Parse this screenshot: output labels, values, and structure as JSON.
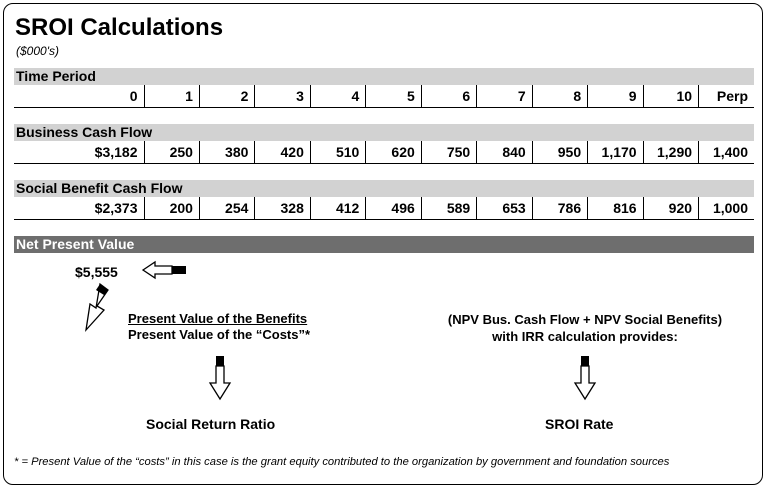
{
  "title": "SROI Calculations",
  "subtitle": "($000's)",
  "time_period": {
    "label": "Time Period",
    "values": [
      "0",
      "1",
      "2",
      "3",
      "4",
      "5",
      "6",
      "7",
      "8",
      "9",
      "10",
      "Perp"
    ]
  },
  "business_cash_flow": {
    "label": "Business Cash Flow",
    "values": [
      "$3,182",
      "250",
      "380",
      "420",
      "510",
      "620",
      "750",
      "840",
      "950",
      "1,170",
      "1,290",
      "1,400"
    ]
  },
  "social_benefit_cash_flow": {
    "label": "Social Benefit Cash Flow",
    "values": [
      "$2,373",
      "200",
      "254",
      "328",
      "412",
      "496",
      "589",
      "653",
      "786",
      "816",
      "920",
      "1,000"
    ]
  },
  "net_present_value": {
    "label": "Net Present Value",
    "value": "$5,555"
  },
  "ratio": {
    "numerator": "Present Value of the Benefits",
    "denominator": "Present Value of the “Costs”*"
  },
  "rate_note": {
    "line1": "(NPV Bus. Cash Flow + NPV Social Benefits)",
    "line2": "with IRR calculation provides:"
  },
  "results": {
    "left": "Social Return Ratio",
    "right": "SROI Rate"
  },
  "footnote": "* = Present Value of the “costs” in this case is the grant equity contributed to the organization by government  and foundation sources"
}
